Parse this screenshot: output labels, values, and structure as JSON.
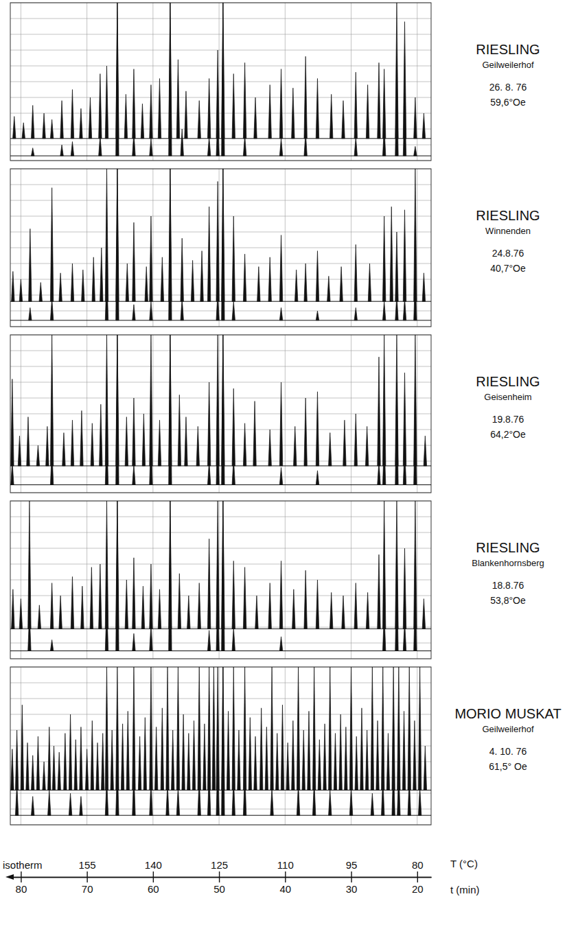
{
  "chart_data": {
    "type": "stem",
    "color": "#111111",
    "grid": true,
    "tick_labels": "x",
    "xlabel": "t (min)",
    "x2label": "T (°C)",
    "xlim": [
      81.6,
      17.9
    ],
    "xticks": [
      80,
      70,
      60,
      50,
      40,
      30,
      20
    ],
    "x2lim": [
      172.4,
      76.85
    ],
    "x2ticks": [
      {
        "value": 170,
        "label": "isotherm"
      },
      155,
      140,
      125,
      110,
      95,
      80
    ],
    "panels": [
      {
        "title": "RIESLING",
        "subtitle": "Geilweilerhof",
        "annotations": [
          "26. 8. 76",
          "59,6°Oe"
        ],
        "ylim": [
          0,
          100
        ],
        "yticks": [
          0,
          10,
          20,
          30,
          40,
          50,
          60,
          70,
          80,
          90,
          100
        ],
        "series": [
          {
            "baseline": 14,
            "x": [
              81.0,
              79.6,
              78.2,
              76.5,
              75.3,
              73.8,
              72.2,
              70.9,
              69.5,
              68.0,
              67.0,
              65.4,
              64.1,
              62.9,
              61.6,
              60.3,
              59.0,
              57.4,
              56.2,
              55.0,
              53.0,
              51.5,
              50.2,
              49.4,
              47.8,
              46.1,
              44.5,
              42.3,
              40.6,
              38.8,
              36.9,
              35.1,
              33.0,
              31.2,
              29.3,
              27.5,
              25.8,
              25.0,
              23.1,
              21.9,
              20.3,
              19.0
            ],
            "values": [
              28,
              24,
              35,
              30,
              26,
              38,
              45,
              33,
              40,
              55,
              60,
              100,
              42,
              58,
              36,
              48,
              52,
              100,
              64,
              44,
              38,
              52,
              70,
              100,
              55,
              62,
              40,
              48,
              58,
              46,
              66,
              52,
              42,
              38,
              56,
              48,
              62,
              58,
              100,
              88,
              40,
              30
            ]
          },
          {
            "baseline": 3,
            "x": [
              78.2,
              73.8,
              72.2,
              68.0,
              65.4,
              62.9,
              60.3,
              57.4,
              55.6,
              51.5,
              50.2,
              49.4,
              46.1,
              40.6,
              36.9,
              29.3,
              25.0,
              23.1,
              21.9,
              20.3
            ],
            "values": [
              8,
              10,
              12,
              16,
              100,
              18,
              14,
              100,
              20,
              15,
              28,
              100,
              16,
              14,
              18,
              15,
              22,
              60,
              40,
              9
            ]
          }
        ]
      },
      {
        "title": "RIESLING",
        "subtitle": "Winnenden",
        "annotations": [
          "24.8.76",
          "40,7°Oe"
        ],
        "ylim": [
          0,
          100
        ],
        "yticks": [
          0,
          10,
          20,
          30,
          40,
          50,
          60,
          70,
          80,
          90,
          100
        ],
        "series": [
          {
            "baseline": 16,
            "x": [
              81.2,
              80.0,
              78.6,
              77.0,
              75.3,
              74.0,
              72.2,
              70.6,
              69.0,
              67.8,
              67.0,
              65.4,
              63.9,
              62.9,
              61.0,
              60.3,
              58.6,
              57.4,
              55.6,
              54.0,
              52.6,
              51.5,
              50.2,
              49.4,
              47.8,
              46.1,
              44.0,
              42.3,
              40.6,
              38.3,
              36.9,
              35.1,
              33.4,
              31.5,
              29.3,
              27.2,
              25.0,
              23.9,
              23.1,
              21.9,
              20.3,
              19.0
            ],
            "values": [
              35,
              30,
              62,
              28,
              88,
              34,
              40,
              36,
              44,
              50,
              100,
              100,
              40,
              66,
              38,
              70,
              44,
              100,
              56,
              42,
              48,
              76,
              92,
              100,
              70,
              46,
              38,
              44,
              58,
              36,
              40,
              48,
              32,
              38,
              52,
              40,
              70,
              76,
              60,
              74,
              100,
              34
            ]
          },
          {
            "baseline": 4,
            "x": [
              78.6,
              75.3,
              67.0,
              65.4,
              62.9,
              60.3,
              57.4,
              55.6,
              50.2,
              49.4,
              47.8,
              40.6,
              35.1,
              29.3,
              25.0,
              23.1,
              21.9,
              20.3
            ],
            "values": [
              12,
              18,
              34,
              100,
              14,
              16,
              100,
              18,
              22,
              100,
              16,
              12,
              10,
              12,
              16,
              20,
              18,
              34
            ]
          }
        ]
      },
      {
        "title": "RIESLING",
        "subtitle": "Geisenheim",
        "annotations": [
          "19.8.76",
          "64,2°Oe"
        ],
        "ylim": [
          0,
          100
        ],
        "yticks": [
          0,
          10,
          20,
          30,
          40,
          50,
          60,
          70,
          80,
          90,
          100
        ],
        "series": [
          {
            "baseline": 17,
            "x": [
              81.3,
              80.2,
              78.9,
              77.4,
              76.0,
              75.3,
              73.5,
              72.2,
              70.8,
              69.2,
              67.9,
              67.0,
              65.4,
              64.0,
              62.9,
              61.4,
              60.3,
              59.0,
              57.4,
              56.0,
              55.0,
              53.2,
              51.5,
              50.2,
              49.4,
              47.8,
              46.1,
              44.6,
              42.3,
              40.6,
              38.5,
              36.9,
              35.1,
              33.2,
              31.0,
              29.3,
              27.6,
              25.8,
              25.0,
              23.1,
              21.9,
              20.3,
              18.8
            ],
            "values": [
              72,
              36,
              48,
              30,
              42,
              100,
              38,
              46,
              52,
              44,
              56,
              100,
              100,
              48,
              60,
              50,
              100,
              46,
              100,
              62,
              48,
              42,
              70,
              100,
              100,
              66,
              44,
              58,
              40,
              70,
              42,
              60,
              64,
              38,
              46,
              50,
              42,
              86,
              100,
              100,
              76,
              100,
              36
            ]
          },
          {
            "baseline": 5,
            "x": [
              81.3,
              75.3,
              67.0,
              65.4,
              62.9,
              60.3,
              57.4,
              51.5,
              50.2,
              49.4,
              47.8,
              40.6,
              35.1,
              25.8,
              25.0,
              23.1,
              21.9,
              20.3
            ],
            "values": [
              20,
              28,
              40,
              100,
              18,
              36,
              100,
              20,
              44,
              100,
              22,
              16,
              14,
              20,
              34,
              70,
              30,
              60
            ]
          }
        ]
      },
      {
        "title": "RIESLING",
        "subtitle": "Blankenhornsberg",
        "annotations": [
          "18.8.76",
          "53,8°Oe"
        ],
        "ylim": [
          0,
          100
        ],
        "yticks": [
          0,
          10,
          20,
          30,
          40,
          50,
          60,
          70,
          80,
          90,
          100
        ],
        "series": [
          {
            "baseline": 19,
            "x": [
              81.2,
              80.0,
              78.7,
              77.2,
              75.3,
              74.0,
              72.2,
              70.7,
              69.3,
              68.0,
              67.0,
              65.4,
              64.0,
              62.9,
              61.5,
              60.3,
              59.0,
              57.4,
              56.0,
              54.6,
              53.0,
              51.5,
              50.2,
              49.4,
              47.8,
              46.1,
              44.3,
              42.3,
              40.6,
              38.7,
              36.9,
              35.1,
              33.0,
              31.2,
              29.3,
              27.5,
              25.8,
              25.0,
              23.1,
              21.9,
              20.3,
              19.0
            ],
            "values": [
              44,
              38,
              100,
              34,
              48,
              40,
              52,
              46,
              58,
              60,
              100,
              100,
              50,
              64,
              46,
              60,
              44,
              100,
              54,
              40,
              48,
              76,
              100,
              100,
              62,
              58,
              40,
              48,
              62,
              44,
              56,
              50,
              42,
              40,
              48,
              42,
              66,
              100,
              100,
              70,
              100,
              38
            ]
          },
          {
            "baseline": 5,
            "x": [
              78.7,
              75.3,
              67.0,
              65.4,
              62.9,
              60.3,
              57.4,
              51.5,
              50.2,
              49.4,
              47.8,
              40.6,
              25.0,
              23.1,
              21.9,
              20.3
            ],
            "values": [
              30,
              12,
              36,
              100,
              16,
              22,
              100,
              18,
              40,
              100,
              20,
              14,
              30,
              60,
              24,
              48
            ]
          }
        ]
      },
      {
        "title": "MORIO MUSKAT",
        "subtitle": "Geilweilerhof",
        "annotations": [
          "4. 10. 76",
          "61,5° Oe"
        ],
        "ylim": [
          0,
          100
        ],
        "yticks": [
          0,
          10,
          20,
          30,
          40,
          50,
          60,
          70,
          80,
          90,
          100
        ],
        "series": [
          {
            "baseline": 22,
            "x": [
              81.3,
              80.6,
              79.8,
              79.0,
              78.2,
              77.4,
              76.5,
              75.7,
              75.0,
              74.2,
              73.3,
              72.5,
              71.7,
              70.9,
              70.0,
              69.2,
              68.4,
              67.6,
              67.0,
              66.2,
              65.4,
              64.6,
              63.8,
              62.9,
              62.0,
              61.2,
              60.3,
              59.5,
              58.6,
              57.8,
              57.0,
              56.2,
              55.4,
              54.6,
              53.8,
              53.0,
              52.2,
              51.5,
              50.8,
              50.2,
              49.4,
              48.6,
              47.8,
              47.0,
              46.1,
              45.3,
              44.5,
              43.6,
              42.8,
              42.0,
              41.2,
              40.4,
              39.6,
              38.8,
              38.0,
              37.2,
              36.4,
              35.6,
              34.8,
              34.0,
              33.2,
              32.4,
              31.6,
              30.8,
              30.0,
              29.2,
              28.4,
              27.6,
              26.8,
              26.0,
              25.2,
              24.4,
              23.6,
              22.8,
              22.0,
              21.2,
              20.4,
              19.6,
              18.8
            ],
            "values": [
              48,
              60,
              76,
              52,
              44,
              56,
              40,
              62,
              50,
              46,
              58,
              70,
              54,
              62,
              48,
              66,
              52,
              58,
              100,
              60,
              100,
              64,
              72,
              100,
              56,
              68,
              100,
              62,
              74,
              100,
              60,
              100,
              70,
              58,
              66,
              100,
              64,
              100,
              100,
              100,
              100,
              72,
              100,
              60,
              100,
              68,
              56,
              74,
              62,
              100,
              58,
              76,
              52,
              66,
              100,
              60,
              72,
              100,
              54,
              64,
              100,
              58,
              70,
              62,
              100,
              56,
              74,
              60,
              100,
              66,
              100,
              58,
              100,
              100,
              72,
              100,
              66,
              100,
              50
            ]
          },
          {
            "baseline": 6,
            "x": [
              80.6,
              78.2,
              75.7,
              72.5,
              70.9,
              67.0,
              65.4,
              62.9,
              60.3,
              57.8,
              56.2,
              53.0,
              51.5,
              50.2,
              49.4,
              47.8,
              46.1,
              42.0,
              38.0,
              35.6,
              33.2,
              30.0,
              26.8,
              25.2,
              23.6,
              22.8,
              21.2,
              19.6
            ],
            "values": [
              26,
              18,
              22,
              20,
              18,
              30,
              40,
              34,
              28,
              26,
              24,
              30,
              36,
              44,
              100,
              30,
              34,
              24,
              26,
              28,
              22,
              24,
              20,
              30,
              40,
              36,
              30,
              24
            ]
          }
        ]
      }
    ]
  }
}
